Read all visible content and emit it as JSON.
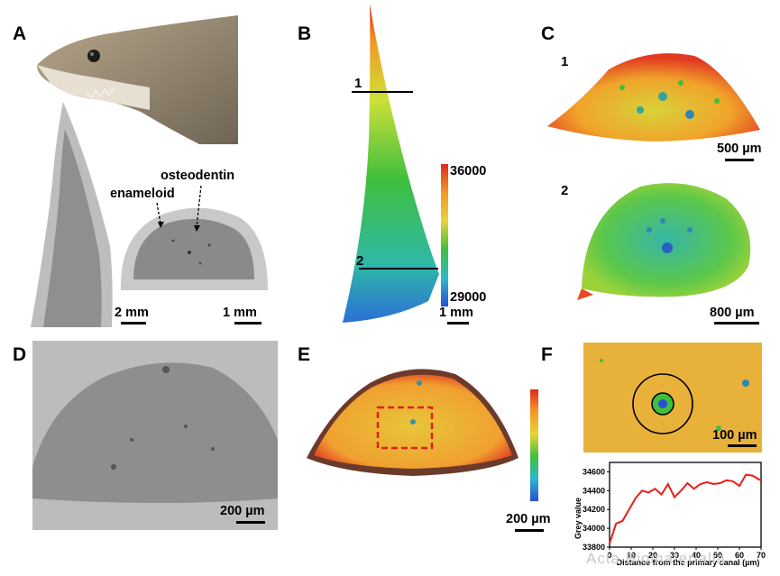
{
  "panels": {
    "a": {
      "label": "A",
      "annotations": {
        "enameloid": "enameloid",
        "osteodentin": "osteodentin"
      },
      "scalebars": [
        "2 mm",
        "1 mm"
      ]
    },
    "b": {
      "label": "B",
      "sections": [
        "1",
        "2"
      ],
      "colorbar": {
        "max": "36000",
        "min": "29000"
      },
      "scalebar": "1 mm"
    },
    "c": {
      "label": "C",
      "sections": [
        "1",
        "2"
      ],
      "scalebars": [
        "500 µm",
        "800 µm"
      ]
    },
    "d": {
      "label": "D",
      "scalebar": "200 µm"
    },
    "e": {
      "label": "E",
      "scalebar": "200 µm"
    },
    "f": {
      "label": "F",
      "scalebar": "100 µm"
    }
  },
  "watermark": "Acta Biomaterialia",
  "colors": {
    "red": "#e02a1e",
    "orange": "#f29a24",
    "yellow": "#e8d33a",
    "green": "#3fbf3c",
    "blue": "#2a4fd6"
  },
  "chart_data": {
    "type": "line",
    "title": "",
    "xlabel": "Distance from the primary canal (µm)",
    "ylabel": "Grey value",
    "xlim": [
      0,
      70
    ],
    "ylim": [
      33800,
      34700
    ],
    "xticks": [
      "0",
      "10",
      "20",
      "30",
      "40",
      "50",
      "60",
      "70"
    ],
    "yticks": [
      "33800",
      "34000",
      "34200",
      "34400",
      "34600"
    ],
    "line_color": "#e8201a",
    "x": [
      0,
      3,
      6,
      9,
      12,
      15,
      18,
      21,
      24,
      27,
      30,
      33,
      36,
      39,
      42,
      45,
      48,
      51,
      54,
      57,
      60,
      63,
      66,
      69,
      70
    ],
    "y": [
      33840,
      34050,
      34080,
      34200,
      34320,
      34400,
      34380,
      34420,
      34360,
      34470,
      34330,
      34400,
      34480,
      34420,
      34470,
      34490,
      34470,
      34480,
      34510,
      34500,
      34450,
      34570,
      34560,
      34520,
      34510
    ]
  }
}
